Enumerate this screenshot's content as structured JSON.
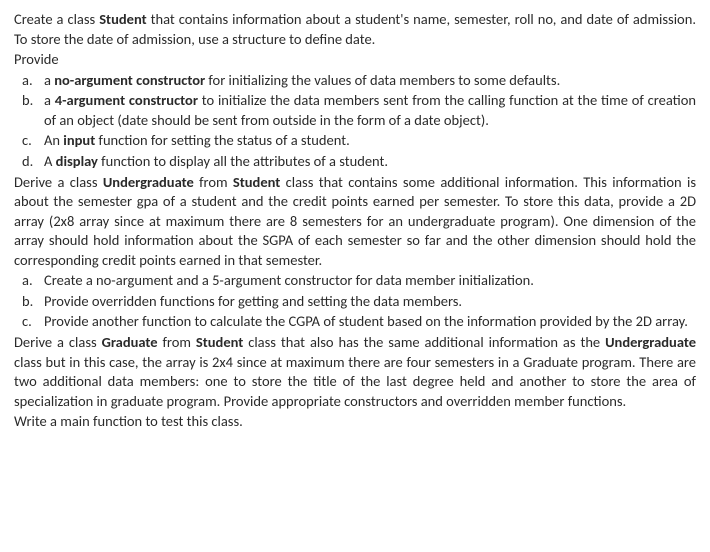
{
  "p1": {
    "pre": "Create a class ",
    "b1": "Student",
    "post": " that contains information about a student's name, semester, roll no, and date of admission. To store the date of admission, use a structure to define date."
  },
  "p2": "Provide",
  "list1": {
    "a": {
      "m": "a.",
      "pre": "a ",
      "b": "no-argument constructor",
      "post": " for initializing the values of data members to some defaults."
    },
    "b": {
      "m": "b.",
      "pre": "a ",
      "b": "4-argument constructor",
      "post": " to initialize the data members sent from the calling function at the time of creation of an object (date should be sent from outside in the form of a date object)."
    },
    "c": {
      "m": "c.",
      "pre": "An ",
      "b": "input",
      "post": " function for setting the status of a student."
    },
    "d": {
      "m": "d.",
      "pre": "A ",
      "b": "display",
      "post": " function to display all the attributes of a student."
    }
  },
  "p3": {
    "pre": "Derive a class ",
    "b1": "Undergraduate",
    "mid": " from ",
    "b2": "Student",
    "post": " class that contains some additional information. This information is about the semester gpa of a student and the credit points earned per semester. To store this data, provide a 2D array (2x8 array since at maximum there are 8 semesters for an undergraduate program). One dimension of the array should hold information about the SGPA of each semester so far and the other dimension should hold the corresponding credit points earned in that semester."
  },
  "list2": {
    "a": {
      "m": "a.",
      "t": "Create a no-argument and a 5-argument constructor for data member initialization."
    },
    "b": {
      "m": "b.",
      "t": "Provide overridden functions for getting and setting the data members."
    },
    "c": {
      "m": "c.",
      "t": "Provide another function to calculate the CGPA of student based on the information provided by the 2D array."
    }
  },
  "p4": {
    "pre": "Derive a class ",
    "b1": "Graduate",
    "mid1": " from ",
    "b2": "Student",
    "mid2": " class that also has the same additional information as the ",
    "b3": "Undergraduate",
    "post": " class but in this case, the array is 2x4 since at maximum there are four semesters in a Graduate program. There are two additional data members: one to store the title of the last degree held and another to store the area of specialization in graduate program. Provide appropriate constructors and overridden member functions."
  },
  "p5": "Write a main function to test this class."
}
